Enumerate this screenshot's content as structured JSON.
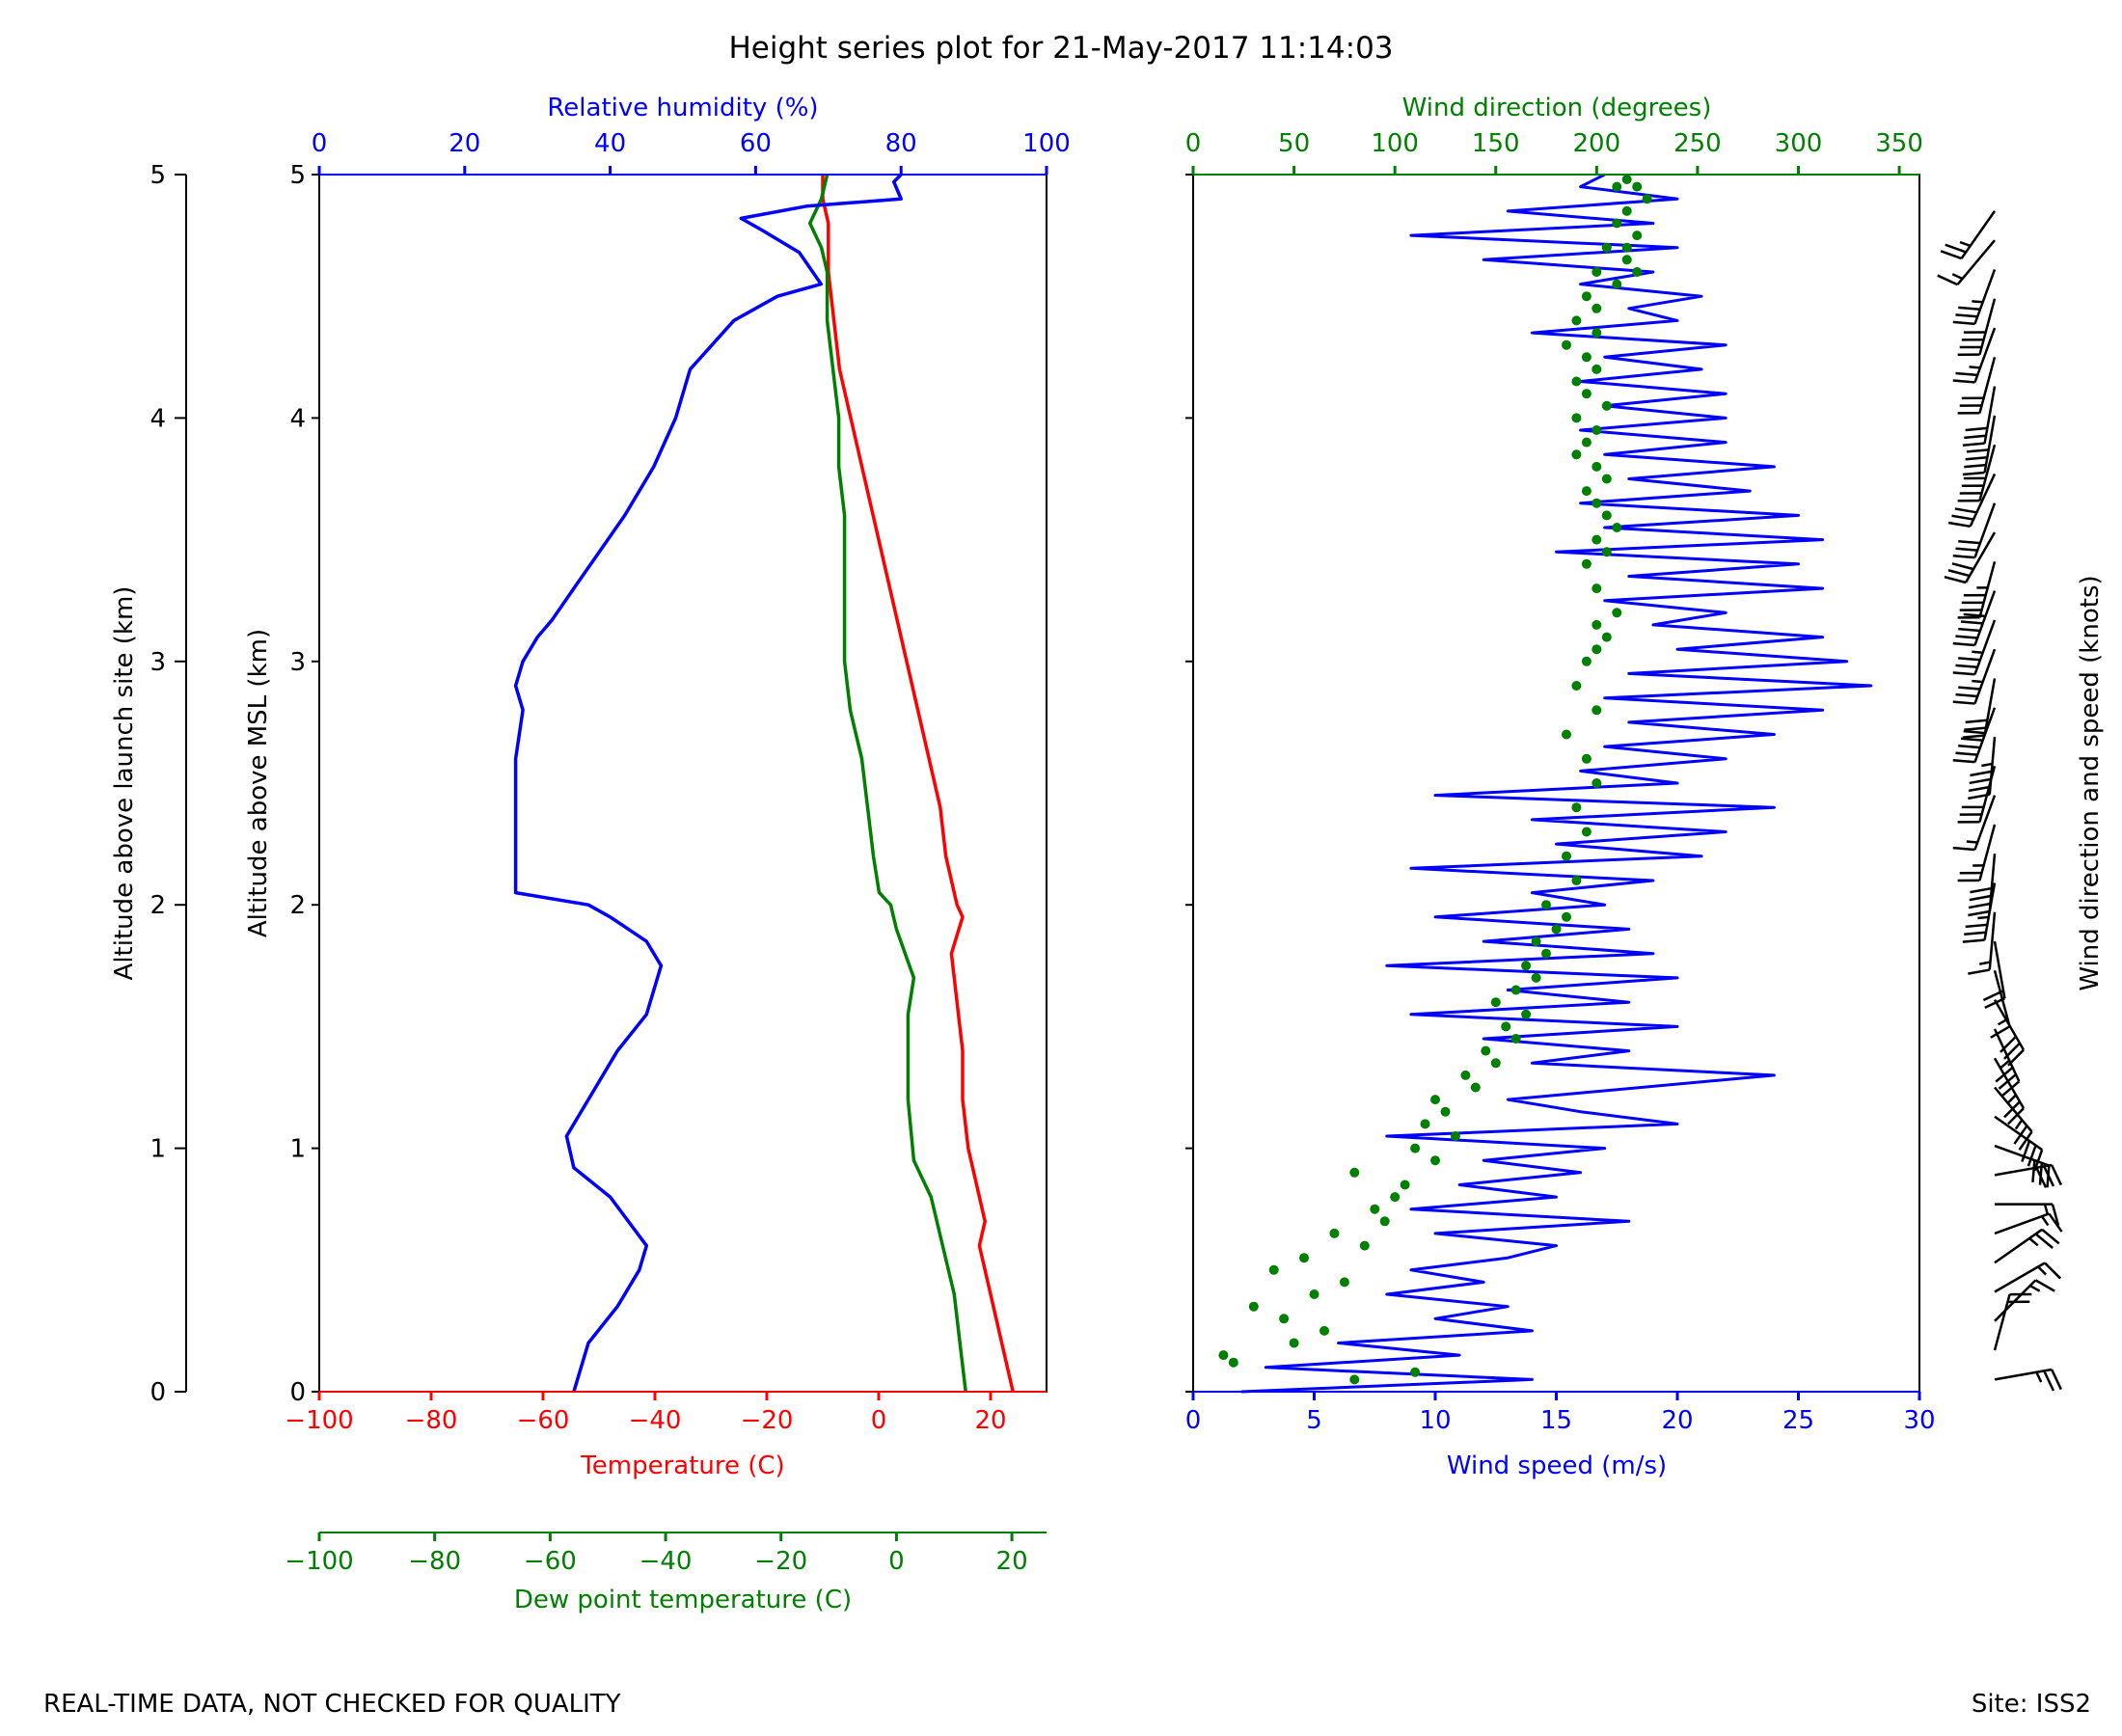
{
  "title": "Height series plot for 21-May-2017 11:14:03",
  "footer": {
    "left": "REAL-TIME DATA, NOT CHECKED FOR QUALITY",
    "right": "Site: ISS2"
  },
  "colors": {
    "temperature": "#ff0000",
    "dewpoint": "#008000",
    "humidity": "#0000ff",
    "wind_speed": "#0000ff",
    "wind_direction": "#008000",
    "axis": "#000000"
  },
  "chart_data": [
    {
      "type": "line",
      "name": "thermodynamic-profile",
      "ylabel": "Altitude above MSL (km)",
      "ylim": [
        0,
        5
      ],
      "yticks": [
        0,
        1,
        2,
        3,
        4,
        5
      ],
      "launch_axis": {
        "ylabel": "Altitude above launch site (km)",
        "ylim": [
          0,
          5
        ],
        "yticks": [
          0,
          1,
          2,
          3,
          4,
          5
        ]
      },
      "axes": {
        "temperature": {
          "label": "Temperature (C)",
          "lim": [
            -100,
            30
          ],
          "ticks": [
            -100,
            -80,
            -60,
            -40,
            -20,
            0,
            20
          ]
        },
        "dewpoint": {
          "label": "Dew point temperature (C)",
          "lim": [
            -100,
            26
          ],
          "ticks": [
            -100,
            -80,
            -60,
            -40,
            -20,
            0,
            20
          ]
        },
        "humidity": {
          "label": "Relative humidity (%)",
          "lim": [
            0,
            100
          ],
          "ticks": [
            0,
            20,
            40,
            60,
            80,
            100
          ]
        }
      },
      "series": [
        {
          "key": "temperature",
          "axis": "temperature",
          "x": [
            24,
            22,
            20,
            18,
            19,
            17,
            16,
            15,
            15,
            14,
            13,
            15,
            14,
            12,
            11,
            9,
            7,
            5,
            3,
            1,
            -1,
            -3,
            -5,
            -7,
            -8,
            -9,
            -9,
            -10,
            -10
          ],
          "y": [
            0.0,
            0.2,
            0.4,
            0.6,
            0.7,
            0.9,
            1.0,
            1.2,
            1.4,
            1.6,
            1.8,
            1.95,
            2.0,
            2.2,
            2.4,
            2.6,
            2.8,
            3.0,
            3.2,
            3.4,
            3.6,
            3.8,
            4.0,
            4.2,
            4.4,
            4.6,
            4.8,
            4.9,
            5.0
          ]
        },
        {
          "key": "dewpoint",
          "axis": "dewpoint",
          "x": [
            12,
            11,
            10,
            8,
            6,
            3,
            2,
            2,
            2,
            3,
            0,
            -1,
            -3,
            -4,
            -5,
            -6,
            -8,
            -9,
            -9,
            -9,
            -9,
            -10,
            -10,
            -11,
            -12,
            -12,
            -12,
            -13,
            -15,
            -13,
            -12
          ],
          "y": [
            0.0,
            0.2,
            0.4,
            0.6,
            0.8,
            0.95,
            1.2,
            1.4,
            1.55,
            1.7,
            1.9,
            2.0,
            2.05,
            2.2,
            2.4,
            2.6,
            2.8,
            3.0,
            3.2,
            3.4,
            3.6,
            3.8,
            4.0,
            4.2,
            4.4,
            4.5,
            4.6,
            4.7,
            4.8,
            4.9,
            5.0
          ]
        },
        {
          "key": "humidity",
          "axis": "humidity",
          "x": [
            35,
            37,
            41,
            44,
            45,
            43,
            40,
            35,
            34,
            37,
            41,
            45,
            47,
            45,
            40,
            37,
            27,
            27,
            27,
            28,
            27,
            28,
            30,
            32,
            35,
            42,
            46,
            49,
            51,
            57,
            63,
            69,
            66,
            61,
            58,
            67,
            80,
            79,
            80
          ],
          "y": [
            0.0,
            0.2,
            0.35,
            0.5,
            0.6,
            0.68,
            0.8,
            0.92,
            1.05,
            1.2,
            1.4,
            1.55,
            1.75,
            1.85,
            1.95,
            2.0,
            2.05,
            2.3,
            2.6,
            2.8,
            2.9,
            3.0,
            3.1,
            3.17,
            3.3,
            3.6,
            3.8,
            4.0,
            4.2,
            4.4,
            4.5,
            4.55,
            4.68,
            4.77,
            4.82,
            4.87,
            4.9,
            4.97,
            5.0
          ]
        }
      ]
    },
    {
      "type": "line",
      "name": "wind-profile",
      "ylim": [
        0,
        5
      ],
      "axes": {
        "wind_speed": {
          "label": "Wind speed (m/s)",
          "lim": [
            0,
            30
          ],
          "ticks": [
            0,
            5,
            10,
            15,
            20,
            25,
            30
          ]
        },
        "wind_direction": {
          "label": "Wind direction (degrees)",
          "lim": [
            0,
            360
          ],
          "ticks": [
            0,
            50,
            100,
            150,
            200,
            250,
            300,
            350
          ]
        }
      },
      "barbs_label": "Wind direction and speed (knots)",
      "series": [
        {
          "key": "wind_speed",
          "axis": "wind_speed",
          "style": "line",
          "x": [
            2,
            14,
            3,
            11,
            6,
            14,
            10,
            13,
            8,
            12,
            9,
            13,
            15,
            10,
            18,
            9,
            15,
            11,
            16,
            12,
            17,
            8,
            20,
            16,
            13,
            24,
            14,
            18,
            12,
            20,
            9,
            18,
            13,
            20,
            8,
            19,
            12,
            18,
            10,
            17,
            14,
            19,
            9,
            21,
            15,
            22,
            14,
            24,
            10,
            20,
            16,
            22,
            17,
            24,
            18,
            26,
            17,
            28,
            18,
            27,
            20,
            26,
            19,
            22,
            17,
            26,
            18,
            25,
            15,
            26,
            17,
            25,
            16,
            23,
            18,
            24,
            17,
            22,
            16,
            22,
            17,
            22,
            16,
            21,
            17,
            22,
            14,
            20,
            18,
            21,
            16,
            19,
            12,
            20,
            9,
            19,
            13,
            20,
            16,
            17
          ],
          "y": [
            0.0,
            0.05,
            0.1,
            0.15,
            0.2,
            0.25,
            0.3,
            0.35,
            0.4,
            0.45,
            0.5,
            0.55,
            0.6,
            0.65,
            0.7,
            0.75,
            0.8,
            0.85,
            0.9,
            0.95,
            1.0,
            1.05,
            1.1,
            1.15,
            1.2,
            1.3,
            1.35,
            1.4,
            1.45,
            1.5,
            1.55,
            1.6,
            1.65,
            1.7,
            1.75,
            1.8,
            1.85,
            1.9,
            1.95,
            2.0,
            2.05,
            2.1,
            2.15,
            2.2,
            2.25,
            2.3,
            2.35,
            2.4,
            2.45,
            2.5,
            2.55,
            2.6,
            2.65,
            2.7,
            2.75,
            2.8,
            2.85,
            2.9,
            2.95,
            3.0,
            3.05,
            3.1,
            3.15,
            3.2,
            3.25,
            3.3,
            3.35,
            3.4,
            3.45,
            3.5,
            3.55,
            3.6,
            3.65,
            3.7,
            3.75,
            3.8,
            3.85,
            3.9,
            3.95,
            4.0,
            4.05,
            4.1,
            4.15,
            4.2,
            4.25,
            4.3,
            4.35,
            4.4,
            4.45,
            4.5,
            4.55,
            4.6,
            4.65,
            4.7,
            4.75,
            4.8,
            4.85,
            4.9,
            4.95,
            5.0
          ]
        },
        {
          "key": "wind_direction",
          "axis": "wind_direction",
          "style": "points",
          "x": [
            110,
            80,
            20,
            15,
            50,
            65,
            45,
            30,
            60,
            75,
            40,
            55,
            85,
            70,
            95,
            90,
            100,
            105,
            80,
            120,
            110,
            130,
            115,
            125,
            120,
            140,
            135,
            150,
            145,
            160,
            155,
            165,
            150,
            160,
            170,
            165,
            175,
            170,
            180,
            185,
            175,
            190,
            185,
            195,
            190,
            200,
            195,
            185,
            200,
            190,
            195,
            200,
            205,
            200,
            210,
            200,
            195,
            205,
            200,
            210,
            205,
            200,
            195,
            205,
            200,
            190,
            195,
            200,
            190,
            205,
            195,
            190,
            200,
            195,
            185,
            200,
            190,
            200,
            195,
            210,
            200,
            215,
            205,
            220,
            210,
            215,
            225,
            210,
            215,
            220,
            215,
            220
          ],
          "y": [
            0.08,
            0.05,
            0.12,
            0.15,
            0.2,
            0.25,
            0.3,
            0.35,
            0.4,
            0.45,
            0.5,
            0.55,
            0.6,
            0.65,
            0.7,
            0.75,
            0.8,
            0.85,
            0.9,
            0.95,
            1.0,
            1.05,
            1.1,
            1.15,
            1.2,
            1.25,
            1.3,
            1.35,
            1.4,
            1.45,
            1.5,
            1.55,
            1.6,
            1.65,
            1.7,
            1.75,
            1.8,
            1.85,
            1.9,
            1.95,
            2.0,
            2.1,
            2.2,
            2.3,
            2.4,
            2.5,
            2.6,
            2.7,
            2.8,
            2.9,
            3.0,
            3.05,
            3.1,
            3.15,
            3.2,
            3.3,
            3.4,
            3.45,
            3.5,
            3.55,
            3.6,
            3.65,
            3.7,
            3.75,
            3.8,
            3.85,
            3.9,
            3.95,
            4.0,
            4.05,
            4.1,
            4.15,
            4.2,
            4.25,
            4.3,
            4.35,
            4.4,
            4.45,
            4.5,
            4.55,
            4.6,
            4.65,
            4.7,
            4.75,
            4.8,
            4.85,
            4.9,
            4.95,
            4.98,
            4.6,
            4.7,
            4.95
          ]
        }
      ]
    }
  ]
}
